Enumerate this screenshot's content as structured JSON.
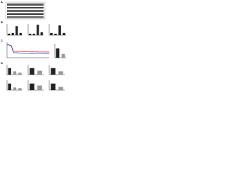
{
  "panels": [
    "A",
    "B",
    "C",
    "D"
  ],
  "chart_data": [
    {
      "type": "bar",
      "values": [
        0.2,
        0.3,
        1.2,
        0.3
      ],
      "colors": [
        "#222",
        "#222",
        "#222",
        "#222"
      ],
      "ylim": [
        0,
        1.5
      ]
    },
    {
      "type": "bar",
      "values": [
        0.2,
        0.2,
        1.4,
        0.4
      ],
      "colors": [
        "#222",
        "#222",
        "#222",
        "#222"
      ],
      "ylim": [
        0,
        1.5
      ]
    },
    {
      "type": "bar",
      "values": [
        0.3,
        0.2,
        1.3,
        0.3
      ],
      "colors": [
        "#222",
        "#222",
        "#222",
        "#222"
      ],
      "ylim": [
        0,
        1.5
      ]
    },
    {
      "type": "line",
      "x": [
        0,
        1,
        2,
        3,
        4,
        5,
        6,
        7,
        8,
        9,
        10,
        11,
        12,
        13,
        14,
        15,
        16,
        17,
        18,
        19,
        20
      ],
      "xlim": [
        0,
        20
      ],
      "ylim": [
        0,
        1.2
      ],
      "series": [
        {
          "color": "#e03030",
          "values": [
            1.0,
            1.0,
            0.95,
            0.5,
            0.5,
            0.48,
            0.5,
            0.47,
            0.48,
            0.46,
            0.47,
            0.45,
            0.46,
            0.45,
            0.46,
            0.44,
            0.45,
            0.44,
            0.45,
            0.44,
            0.44
          ]
        },
        {
          "color": "#3050d0",
          "values": [
            1.0,
            0.98,
            0.92,
            0.4,
            0.38,
            0.38,
            0.37,
            0.37,
            0.36,
            0.36,
            0.36,
            0.35,
            0.35,
            0.35,
            0.34,
            0.34,
            0.34,
            0.34,
            0.33,
            0.33,
            0.33
          ]
        }
      ]
    },
    {
      "type": "bar",
      "values": [
        1.0,
        0.4
      ],
      "colors": [
        "#222",
        "#999"
      ],
      "ylim": [
        0,
        1.5
      ]
    },
    {
      "type": "bar",
      "values": [
        1.0,
        0.5,
        0.3
      ],
      "colors": [
        "#222",
        "#999",
        "#999"
      ],
      "ylim": [
        0,
        1.5
      ]
    },
    {
      "type": "bar",
      "values": [
        1.0,
        0.6
      ],
      "colors": [
        "#222",
        "#999"
      ],
      "ylim": [
        0,
        1.5
      ]
    },
    {
      "type": "bar",
      "values": [
        1.0,
        0.5
      ],
      "colors": [
        "#222",
        "#999"
      ],
      "ylim": [
        0,
        1.5
      ]
    },
    {
      "type": "bar",
      "values": [
        1.0,
        0.4,
        0.3
      ],
      "colors": [
        "#222",
        "#999",
        "#999"
      ],
      "ylim": [
        0,
        1.5
      ]
    },
    {
      "type": "bar",
      "values": [
        1.0,
        0.7
      ],
      "colors": [
        "#222",
        "#999"
      ],
      "ylim": [
        0,
        1.5
      ]
    },
    {
      "type": "bar",
      "values": [
        1.0,
        0.5
      ],
      "colors": [
        "#222",
        "#999"
      ],
      "ylim": [
        0,
        1.5
      ]
    }
  ]
}
